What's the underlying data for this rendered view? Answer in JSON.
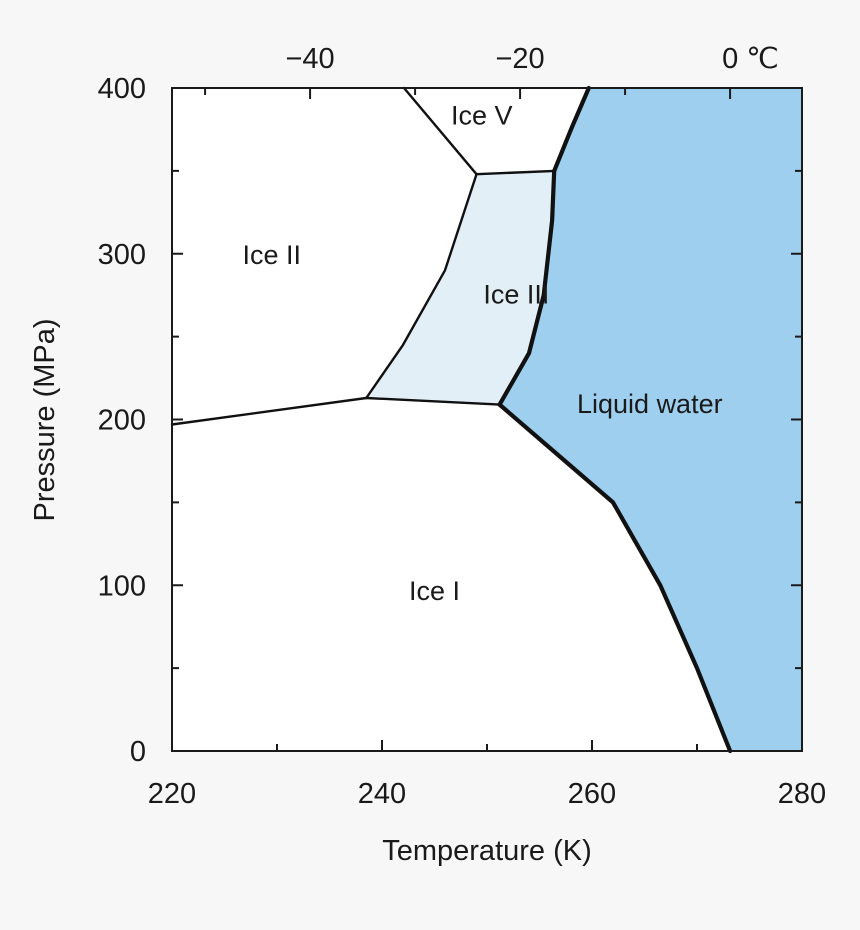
{
  "chart_data": {
    "type": "area",
    "title": "",
    "xlabel": "Temperature (K)",
    "ylabel": "Pressure (MPa)",
    "xlim": [
      220,
      280
    ],
    "ylim": [
      0,
      400
    ],
    "x_ticks": [
      220,
      240,
      260,
      280
    ],
    "x_tick_labels": [
      "220",
      "240",
      "260",
      "280"
    ],
    "y_ticks": [
      0,
      100,
      200,
      300,
      400
    ],
    "y_tick_labels": [
      "0",
      "100",
      "200",
      "300",
      "400"
    ],
    "top_axis": {
      "unit": "°C",
      "ticks": [
        -40,
        -20,
        0
      ],
      "tick_labels": [
        "−40",
        "−20",
        "0 ℃"
      ]
    },
    "grid": false,
    "regions": [
      {
        "label": "Liquid water",
        "color": "#9ecfee",
        "label_at": [
          265.5,
          210
        ],
        "boundary": [
          [
            251.2,
            209
          ],
          [
            254,
            240
          ],
          [
            255.4,
            275
          ],
          [
            256.2,
            320
          ],
          [
            256.4,
            350
          ],
          [
            258,
            375
          ],
          [
            259.7,
            400
          ],
          [
            280,
            400
          ],
          [
            280,
            0
          ],
          [
            273.15,
            0
          ],
          [
            270,
            50
          ],
          [
            266.5,
            100
          ],
          [
            262,
            150
          ],
          [
            256.5,
            180
          ],
          [
            251.2,
            209
          ]
        ]
      },
      {
        "label": "Ice III",
        "color": "#e2eff6",
        "label_at": [
          252.8,
          276
        ],
        "boundary": [
          [
            238.5,
            213
          ],
          [
            251.2,
            209
          ],
          [
            254,
            240
          ],
          [
            255.4,
            275
          ],
          [
            256.2,
            320
          ],
          [
            256.4,
            350
          ],
          [
            249.0,
            348
          ],
          [
            246,
            290
          ],
          [
            242,
            245
          ],
          [
            238.5,
            213
          ]
        ]
      },
      {
        "label": "Ice II",
        "color": "#ffffff",
        "label_at": [
          229.5,
          300
        ]
      },
      {
        "label": "Ice V",
        "color": "#ffffff",
        "label_at": [
          249.5,
          384
        ]
      },
      {
        "label": "Ice I",
        "color": "#ffffff",
        "label_at": [
          245.0,
          97
        ]
      }
    ],
    "phase_boundaries": [
      {
        "name": "ice-ii-ice-i",
        "bold": false,
        "points": [
          [
            220,
            197
          ],
          [
            238.5,
            213
          ]
        ]
      },
      {
        "name": "ice-iii-ice-i",
        "bold": false,
        "points": [
          [
            238.5,
            213
          ],
          [
            251.2,
            209
          ]
        ]
      },
      {
        "name": "ice-ii-ice-iii",
        "bold": false,
        "points": [
          [
            238.5,
            213
          ],
          [
            242,
            245
          ],
          [
            246,
            290
          ],
          [
            249.0,
            348
          ]
        ]
      },
      {
        "name": "ice-ii-ice-v",
        "bold": false,
        "points": [
          [
            242.1,
            400
          ],
          [
            249.0,
            348
          ]
        ]
      },
      {
        "name": "ice-iii-ice-v",
        "bold": false,
        "points": [
          [
            249.0,
            348
          ],
          [
            256.4,
            350
          ]
        ]
      },
      {
        "name": "melting-ice-v",
        "bold": true,
        "points": [
          [
            256.4,
            350
          ],
          [
            258,
            375
          ],
          [
            259.7,
            400
          ]
        ]
      },
      {
        "name": "melting-ice-iii",
        "bold": true,
        "points": [
          [
            251.2,
            209
          ],
          [
            254,
            240
          ],
          [
            255.4,
            275
          ],
          [
            256.2,
            320
          ],
          [
            256.4,
            350
          ]
        ]
      },
      {
        "name": "melting-ice-i",
        "bold": true,
        "points": [
          [
            251.2,
            209
          ],
          [
            256.5,
            180
          ],
          [
            262,
            150
          ],
          [
            266.5,
            100
          ],
          [
            270,
            50
          ],
          [
            273.15,
            0
          ]
        ]
      }
    ]
  }
}
